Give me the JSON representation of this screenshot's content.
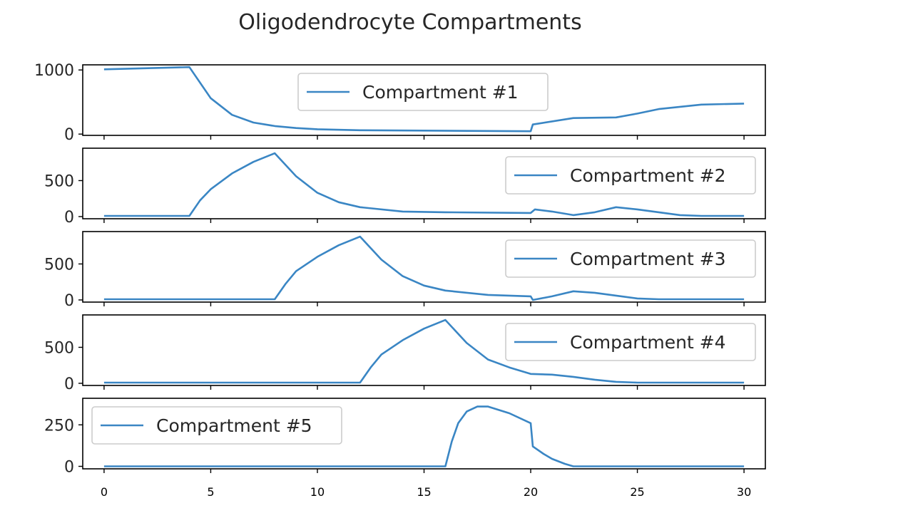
{
  "chart_data": {
    "type": "line",
    "title": "Oligodendrocyte Compartments",
    "xlabel": "",
    "ylabel": "",
    "xlim": [
      -1,
      31
    ],
    "x_ticks": [
      0,
      5,
      10,
      15,
      20,
      25,
      30
    ],
    "line_color": "#3a86c4",
    "grid": false,
    "subplots": [
      {
        "name": "Compartment #1",
        "legend_position": "upper-center",
        "ylim": [
          -20,
          1080
        ],
        "y_ticks": [
          0,
          1000
        ],
        "points": [
          [
            0,
            1010
          ],
          [
            4,
            1045
          ],
          [
            5,
            560
          ],
          [
            6,
            300
          ],
          [
            7,
            180
          ],
          [
            8,
            125
          ],
          [
            9,
            95
          ],
          [
            10,
            75
          ],
          [
            12,
            60
          ],
          [
            15,
            55
          ],
          [
            20,
            45
          ],
          [
            20.1,
            150
          ],
          [
            22,
            250
          ],
          [
            24,
            260
          ],
          [
            25,
            320
          ],
          [
            26,
            390
          ],
          [
            28,
            460
          ],
          [
            30,
            475
          ]
        ]
      },
      {
        "name": "Compartment #2",
        "legend_position": "upper-right",
        "ylim": [
          -30,
          950
        ],
        "y_ticks": [
          0,
          500
        ],
        "points": [
          [
            0,
            10
          ],
          [
            4,
            10
          ],
          [
            4.5,
            225
          ],
          [
            5,
            380
          ],
          [
            6,
            600
          ],
          [
            7,
            760
          ],
          [
            8,
            880
          ],
          [
            9,
            560
          ],
          [
            10,
            330
          ],
          [
            11,
            200
          ],
          [
            12,
            130
          ],
          [
            14,
            70
          ],
          [
            16,
            60
          ],
          [
            20,
            50
          ],
          [
            20.2,
            100
          ],
          [
            21,
            70
          ],
          [
            22,
            20
          ],
          [
            23,
            60
          ],
          [
            24,
            130
          ],
          [
            25,
            100
          ],
          [
            26,
            60
          ],
          [
            27,
            20
          ],
          [
            28,
            10
          ],
          [
            30,
            10
          ]
        ]
      },
      {
        "name": "Compartment #3",
        "legend_position": "upper-right",
        "ylim": [
          -30,
          950
        ],
        "y_ticks": [
          0,
          500
        ],
        "points": [
          [
            0,
            10
          ],
          [
            8,
            10
          ],
          [
            8.5,
            220
          ],
          [
            9,
            400
          ],
          [
            10,
            600
          ],
          [
            11,
            760
          ],
          [
            12,
            880
          ],
          [
            13,
            560
          ],
          [
            14,
            330
          ],
          [
            15,
            200
          ],
          [
            16,
            130
          ],
          [
            18,
            70
          ],
          [
            20,
            50
          ],
          [
            20.1,
            0
          ],
          [
            21,
            50
          ],
          [
            22,
            120
          ],
          [
            23,
            100
          ],
          [
            24,
            60
          ],
          [
            25,
            20
          ],
          [
            26,
            10
          ],
          [
            30,
            10
          ]
        ]
      },
      {
        "name": "Compartment #4",
        "legend_position": "upper-right",
        "ylim": [
          -30,
          950
        ],
        "y_ticks": [
          0,
          500
        ],
        "points": [
          [
            0,
            10
          ],
          [
            12,
            10
          ],
          [
            12.5,
            220
          ],
          [
            13,
            400
          ],
          [
            14,
            600
          ],
          [
            15,
            760
          ],
          [
            16,
            880
          ],
          [
            17,
            560
          ],
          [
            18,
            330
          ],
          [
            19,
            220
          ],
          [
            20,
            130
          ],
          [
            21,
            120
          ],
          [
            22,
            90
          ],
          [
            23,
            50
          ],
          [
            24,
            20
          ],
          [
            25,
            10
          ],
          [
            30,
            10
          ]
        ]
      },
      {
        "name": "Compartment #5",
        "legend_position": "upper-left",
        "ylim": [
          -15,
          410
        ],
        "y_ticks": [
          0,
          250
        ],
        "points": [
          [
            0,
            0
          ],
          [
            16,
            0
          ],
          [
            16.3,
            150
          ],
          [
            16.6,
            260
          ],
          [
            17,
            330
          ],
          [
            17.5,
            360
          ],
          [
            18,
            360
          ],
          [
            19,
            320
          ],
          [
            20,
            260
          ],
          [
            20.1,
            120
          ],
          [
            20.6,
            75
          ],
          [
            21,
            45
          ],
          [
            21.6,
            15
          ],
          [
            22,
            0
          ],
          [
            30,
            0
          ]
        ]
      }
    ]
  }
}
